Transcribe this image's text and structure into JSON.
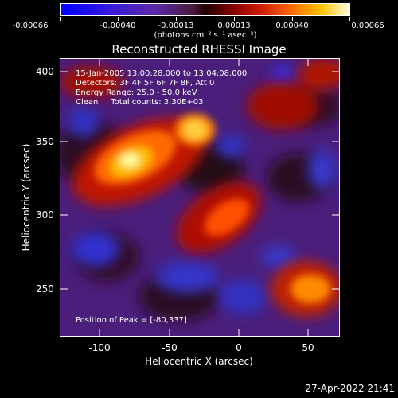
{
  "colorbar": {
    "ticks": [
      "-0.00066",
      "-0.00040",
      "-0.00013",
      "0.00013",
      "0.00040",
      "0.00066"
    ],
    "units": "(photons cm⁻² s⁻¹ asec⁻²)"
  },
  "title": "Reconstructed RHESSI Image",
  "info": {
    "line1": "15-Jan-2005 13:00:28.000 to 13:04:08.000",
    "line2": "Detectors: 3F 4F 5F 6F 7F 8F, Att 0",
    "line3": "Energy Range: 25.0 - 50.0 keV",
    "line4": "Clean     Total counts: 3.30E+03"
  },
  "peak": "Position of Peak = [-80,337]",
  "axes": {
    "xlabel": "Heliocentric X (arcsec)",
    "ylabel": "Heliocentric Y (arcsec)",
    "xticks": [
      "-100",
      "-50",
      "0",
      "50"
    ],
    "yticks": [
      "400",
      "350",
      "300",
      "250"
    ]
  },
  "timestamp": "27-Apr-2022 21:41"
}
